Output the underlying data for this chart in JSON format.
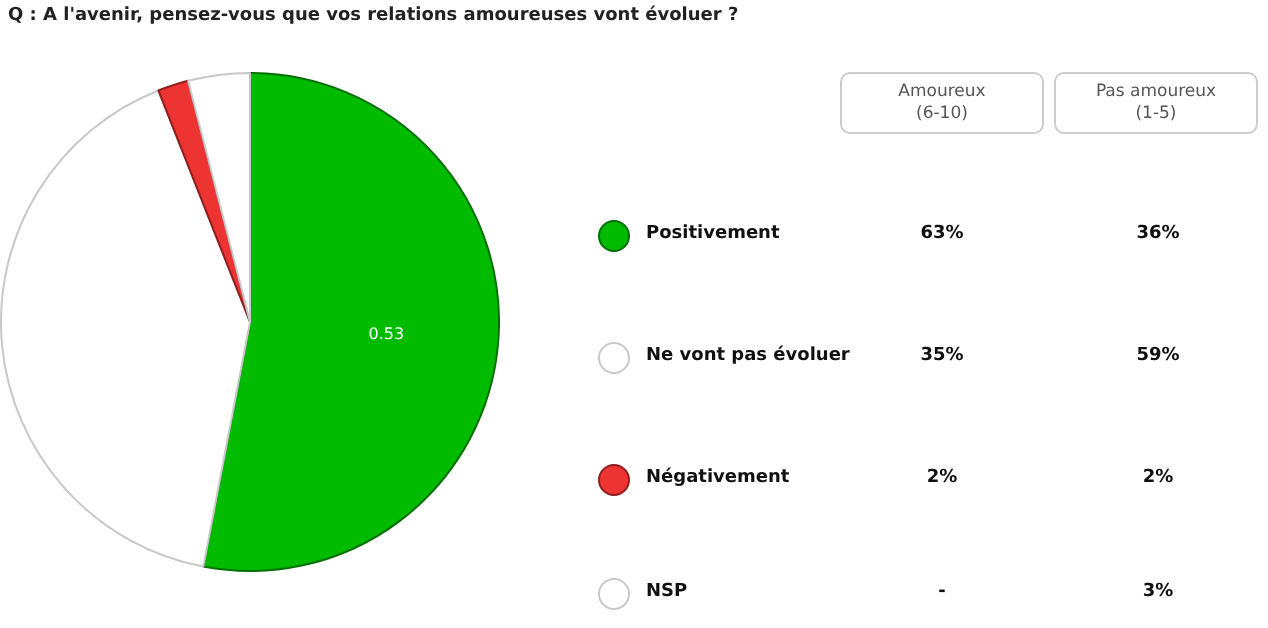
{
  "chart_data": [
    {
      "type": "pie",
      "title": "Q : A l'avenir, pensez-vous que vos relations amoureuses vont évoluer ?",
      "categories": [
        null,
        null,
        null,
        null
      ],
      "values": [
        0.53,
        0.41,
        0.02,
        0.04
      ],
      "colors": [
        "#00bb00",
        "#ffffff",
        "#ee3333",
        "#ffffff"
      ],
      "value_labels": [
        "0.53",
        null,
        null,
        null
      ],
      "legend": false
    },
    {
      "type": "heatmap",
      "categories": [
        "Amoureux\n(6-10)",
        "Pas amoureux\n(1-5)"
      ],
      "y_categories": [
        "Positivement",
        "Ne vont pas évoluer",
        "Négativement",
        "NSP"
      ],
      "cells": [
        [
          63,
          36
        ],
        [
          35,
          59
        ],
        [
          2,
          2
        ],
        [
          null,
          3
        ]
      ],
      "cell_labels": [
        [
          "63%",
          "36%"
        ],
        [
          "35%",
          "59%"
        ],
        [
          "2%",
          "2%"
        ],
        [
          "-",
          "3%"
        ]
      ]
    }
  ]
}
